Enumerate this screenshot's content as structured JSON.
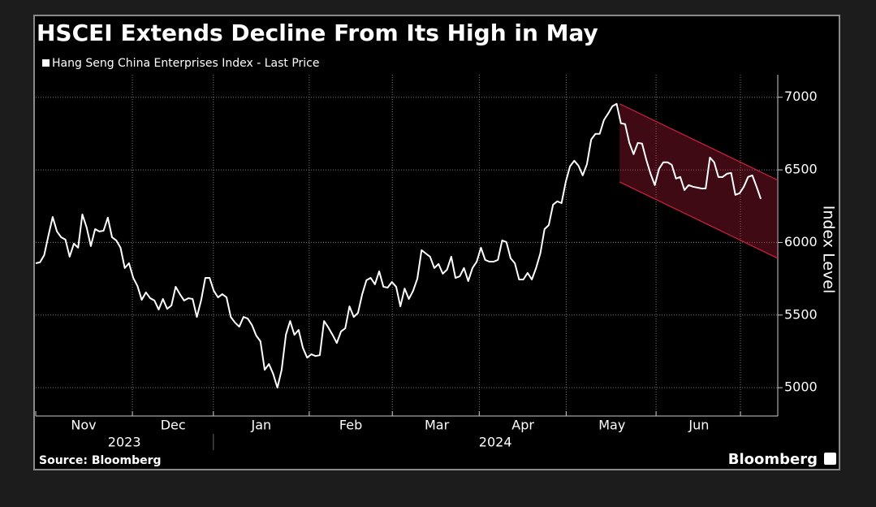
{
  "chart_data": {
    "type": "line",
    "title": "HSCEI Extends Decline From Its High in May",
    "y_axis_label": "Index Level",
    "source": "Source: Bloomberg",
    "brand": "Bloomberg",
    "series": [
      {
        "name": "Hang Seng China Enterprises Index - Last Price",
        "color": "#ffffff",
        "values": [
          5857,
          5863,
          5913,
          6048,
          6176,
          6076,
          6036,
          6020,
          5902,
          5992,
          5964,
          6193,
          6104,
          5975,
          6092,
          6076,
          6081,
          6171,
          6036,
          6014,
          5964,
          5824,
          5857,
          5756,
          5700,
          5605,
          5656,
          5616,
          5600,
          5538,
          5611,
          5543,
          5566,
          5695,
          5644,
          5600,
          5616,
          5611,
          5487,
          5600,
          5756,
          5756,
          5667,
          5622,
          5644,
          5622,
          5487,
          5448,
          5420,
          5487,
          5476,
          5431,
          5359,
          5319,
          5123,
          5163,
          5095,
          5000,
          5123,
          5364,
          5459,
          5364,
          5398,
          5275,
          5207,
          5230,
          5218,
          5224,
          5459,
          5415,
          5364,
          5308,
          5387,
          5409,
          5560,
          5487,
          5515,
          5644,
          5740,
          5756,
          5712,
          5801,
          5695,
          5689,
          5728,
          5695,
          5560,
          5683,
          5611,
          5667,
          5751,
          5947,
          5924,
          5902,
          5824,
          5852,
          5785,
          5813,
          5902,
          5756,
          5767,
          5824,
          5734,
          5824,
          5868,
          5964,
          5880,
          5868,
          5868,
          5880,
          6014,
          6003,
          5891,
          5857,
          5745,
          5745,
          5790,
          5745,
          5824,
          5924,
          6092,
          6120,
          6260,
          6283,
          6271,
          6417,
          6524,
          6563,
          6529,
          6462,
          6540,
          6709,
          6748,
          6748,
          6843,
          6888,
          6938,
          6955,
          6821,
          6815,
          6686,
          6608,
          6686,
          6681,
          6569,
          6473,
          6395,
          6507,
          6552,
          6552,
          6535,
          6440,
          6451,
          6361,
          6395,
          6384,
          6378,
          6372,
          6372,
          6585,
          6552,
          6451,
          6451,
          6473,
          6479,
          6328,
          6339,
          6384,
          6451,
          6462,
          6384,
          6300
        ]
      }
    ],
    "xlim": [
      0,
      175
    ],
    "x_labels": [
      {
        "value": 11.3,
        "label": "Nov"
      },
      {
        "value": 32.4,
        "label": "Dec"
      },
      {
        "value": 53.2,
        "label": "Jan"
      },
      {
        "value": 74.3,
        "label": "Feb"
      },
      {
        "value": 94.6,
        "label": "Mar"
      },
      {
        "value": 114.9,
        "label": "Apr"
      },
      {
        "value": 135.9,
        "label": "May"
      },
      {
        "value": 156.4,
        "label": "Jun"
      }
    ],
    "x_grid": [
      22.8,
      41.9,
      64.5,
      84.1,
      104.6,
      125.1,
      146.3,
      166.2
    ],
    "year_labels": [
      {
        "value": 20.9,
        "label": "2023"
      },
      {
        "value": 108.4,
        "label": "2024"
      }
    ],
    "ylim": [
      4805,
      7155
    ],
    "yticks": [
      5000,
      5500,
      6000,
      6500,
      7000
    ],
    "grid": true,
    "channel": {
      "x": [
        137.7,
        175
      ],
      "upper": [
        6955,
        6429
      ],
      "lower": [
        6417,
        5891
      ],
      "color": "#d0203f"
    }
  }
}
